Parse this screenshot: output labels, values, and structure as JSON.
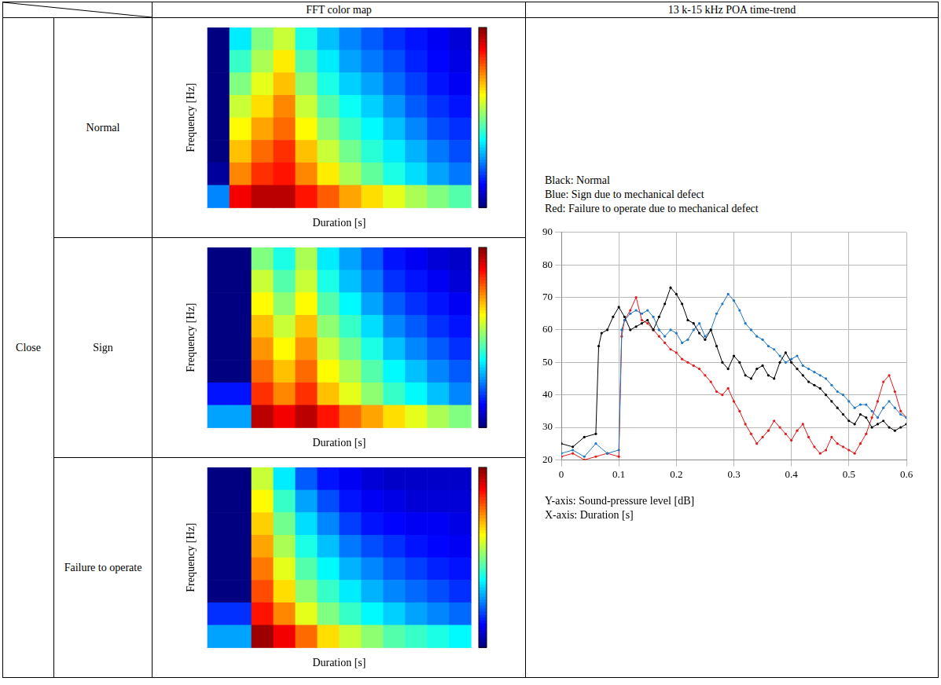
{
  "table": {
    "columns": [
      "FFT color map",
      "13 k-15 kHz POA time-trend"
    ],
    "group": "Close",
    "rows": [
      "Normal",
      "Sign",
      "Failure to operate"
    ]
  },
  "chart_data": [
    {
      "type": "heatmap",
      "x_label": "Duration [s]",
      "y_label": "Frequency [Hz]",
      "xlim": [
        0,
        0.6
      ],
      "ylim": [
        0,
        20000
      ],
      "tick_labels": false,
      "colorbar": {
        "range": [
          20,
          90
        ]
      },
      "cells": [
        [
          20,
          45,
          55,
          60,
          48,
          42,
          38,
          35,
          32,
          30,
          28,
          26
        ],
        [
          20,
          50,
          58,
          65,
          52,
          45,
          40,
          37,
          34,
          31,
          29,
          27
        ],
        [
          20,
          55,
          62,
          68,
          56,
          48,
          43,
          40,
          36,
          33,
          30,
          28
        ],
        [
          20,
          60,
          66,
          72,
          60,
          52,
          47,
          43,
          39,
          35,
          32,
          30
        ],
        [
          20,
          64,
          70,
          74,
          64,
          56,
          50,
          46,
          42,
          38,
          34,
          32
        ],
        [
          20,
          68,
          74,
          78,
          68,
          60,
          54,
          49,
          45,
          41,
          37,
          34
        ],
        [
          22,
          72,
          78,
          80,
          72,
          65,
          58,
          53,
          48,
          44,
          40,
          37
        ],
        [
          38,
          82,
          86,
          86,
          80,
          75,
          70,
          66,
          62,
          58,
          55,
          52
        ]
      ]
    },
    {
      "type": "heatmap",
      "x_label": "Duration [s]",
      "y_label": "Frequency [Hz]",
      "xlim": [
        0,
        0.6
      ],
      "ylim": [
        0,
        20000
      ],
      "tick_labels": false,
      "colorbar": {
        "range": [
          20,
          90
        ]
      },
      "cells": [
        [
          20,
          20,
          55,
          48,
          58,
          45,
          40,
          35,
          30,
          28,
          26,
          25
        ],
        [
          20,
          20,
          60,
          52,
          60,
          48,
          42,
          37,
          32,
          30,
          28,
          26
        ],
        [
          20,
          20,
          64,
          56,
          64,
          52,
          46,
          40,
          35,
          32,
          30,
          28
        ],
        [
          20,
          20,
          68,
          60,
          68,
          56,
          50,
          44,
          38,
          35,
          32,
          30
        ],
        [
          20,
          20,
          71,
          64,
          71,
          60,
          54,
          48,
          42,
          38,
          35,
          32
        ],
        [
          20,
          20,
          74,
          68,
          74,
          64,
          58,
          52,
          46,
          42,
          38,
          35
        ],
        [
          30,
          30,
          78,
          72,
          78,
          68,
          62,
          56,
          50,
          46,
          42,
          38
        ],
        [
          40,
          40,
          86,
          82,
          86,
          80,
          74,
          70,
          66,
          62,
          58,
          55
        ]
      ]
    },
    {
      "type": "heatmap",
      "x_label": "Duration [s]",
      "y_label": "Frequency [Hz]",
      "xlim": [
        0,
        0.6
      ],
      "ylim": [
        0,
        20000
      ],
      "tick_labels": false,
      "colorbar": {
        "range": [
          20,
          90
        ]
      },
      "cells": [
        [
          20,
          20,
          60,
          45,
          35,
          30,
          28,
          26,
          25,
          25,
          25,
          25
        ],
        [
          20,
          20,
          64,
          50,
          40,
          34,
          30,
          28,
          27,
          26,
          26,
          26
        ],
        [
          20,
          20,
          67,
          54,
          44,
          38,
          33,
          30,
          29,
          28,
          28,
          27
        ],
        [
          20,
          20,
          70,
          58,
          48,
          42,
          37,
          34,
          32,
          30,
          29,
          28
        ],
        [
          20,
          20,
          73,
          62,
          52,
          46,
          41,
          38,
          35,
          33,
          31,
          30
        ],
        [
          20,
          20,
          76,
          66,
          56,
          50,
          45,
          41,
          38,
          36,
          34,
          32
        ],
        [
          32,
          32,
          80,
          72,
          62,
          55,
          50,
          46,
          43,
          40,
          38,
          36
        ],
        [
          40,
          40,
          88,
          82,
          74,
          66,
          60,
          56,
          52,
          50,
          48,
          46
        ]
      ]
    },
    {
      "type": "line",
      "notes": [
        "Y-axis: Sound-pressure level [dB]",
        "X-axis: Duration [s]"
      ],
      "xlim": [
        0,
        0.6
      ],
      "xticks": [
        0,
        0.1,
        0.2,
        0.3,
        0.4,
        0.5,
        0.6
      ],
      "ylim": [
        20,
        90
      ],
      "yticks": [
        20,
        30,
        40,
        50,
        60,
        70,
        80,
        90
      ],
      "grid": true,
      "legend": "top",
      "series": [
        {
          "name": "Black: Normal",
          "color": "#000000",
          "marker": "circle",
          "x": [
            0,
            0.02,
            0.04,
            0.06,
            0.065,
            0.07,
            0.08,
            0.09,
            0.1,
            0.11,
            0.12,
            0.13,
            0.14,
            0.15,
            0.16,
            0.17,
            0.18,
            0.19,
            0.2,
            0.21,
            0.22,
            0.23,
            0.24,
            0.25,
            0.26,
            0.27,
            0.28,
            0.29,
            0.3,
            0.31,
            0.32,
            0.33,
            0.34,
            0.35,
            0.36,
            0.37,
            0.38,
            0.39,
            0.4,
            0.41,
            0.42,
            0.43,
            0.44,
            0.45,
            0.46,
            0.47,
            0.48,
            0.49,
            0.5,
            0.51,
            0.52,
            0.53,
            0.54,
            0.55,
            0.56,
            0.57,
            0.58,
            0.59,
            0.6
          ],
          "values": [
            25,
            24,
            27,
            28,
            55,
            59,
            60,
            64,
            67,
            64,
            60,
            61,
            62,
            63,
            60,
            64,
            68,
            73,
            71,
            68,
            63,
            62,
            59,
            57,
            60,
            55,
            50,
            48,
            52,
            50,
            46,
            45,
            48,
            49,
            46,
            45,
            50,
            53,
            50,
            48,
            46,
            44,
            43,
            42,
            40,
            38,
            36,
            34,
            32,
            31,
            34,
            33,
            30,
            31,
            32,
            30,
            29,
            30,
            31
          ]
        },
        {
          "name": "Blue: Sign due to mechanical defect",
          "color": "#1f77c4",
          "marker": "circle",
          "x": [
            0,
            0.02,
            0.04,
            0.06,
            0.08,
            0.1,
            0.105,
            0.11,
            0.12,
            0.13,
            0.14,
            0.15,
            0.16,
            0.17,
            0.18,
            0.19,
            0.2,
            0.21,
            0.22,
            0.23,
            0.24,
            0.25,
            0.26,
            0.27,
            0.28,
            0.29,
            0.3,
            0.31,
            0.32,
            0.33,
            0.34,
            0.35,
            0.36,
            0.37,
            0.38,
            0.39,
            0.4,
            0.41,
            0.42,
            0.43,
            0.44,
            0.45,
            0.46,
            0.47,
            0.48,
            0.49,
            0.5,
            0.51,
            0.52,
            0.53,
            0.54,
            0.55,
            0.56,
            0.57,
            0.58,
            0.59,
            0.6
          ],
          "values": [
            22,
            23,
            21,
            25,
            22,
            23,
            60,
            63,
            65,
            66,
            65,
            66,
            64,
            60,
            58,
            60,
            59,
            56,
            57,
            60,
            62,
            58,
            60,
            65,
            68,
            71,
            69,
            66,
            62,
            60,
            58,
            57,
            55,
            54,
            52,
            50,
            51,
            52,
            49,
            48,
            47,
            46,
            45,
            43,
            41,
            40,
            38,
            36,
            37,
            37,
            35,
            33,
            36,
            38,
            36,
            34,
            33
          ]
        },
        {
          "name": "Red: Failure to operate due to mechanical defect",
          "color": "#e31a1c",
          "marker": "circle",
          "x": [
            0,
            0.02,
            0.04,
            0.06,
            0.08,
            0.1,
            0.105,
            0.11,
            0.12,
            0.13,
            0.14,
            0.15,
            0.16,
            0.17,
            0.18,
            0.19,
            0.2,
            0.21,
            0.22,
            0.23,
            0.24,
            0.25,
            0.26,
            0.27,
            0.28,
            0.29,
            0.3,
            0.31,
            0.32,
            0.33,
            0.34,
            0.35,
            0.36,
            0.37,
            0.38,
            0.39,
            0.4,
            0.41,
            0.42,
            0.43,
            0.44,
            0.45,
            0.46,
            0.47,
            0.48,
            0.49,
            0.5,
            0.51,
            0.52,
            0.53,
            0.54,
            0.55,
            0.56,
            0.57,
            0.58,
            0.59,
            0.6
          ],
          "values": [
            21,
            22,
            20,
            21,
            22,
            21,
            58,
            63,
            66,
            70,
            63,
            62,
            60,
            58,
            56,
            54,
            53,
            51,
            50,
            49,
            48,
            46,
            44,
            41,
            40,
            42,
            38,
            35,
            31,
            28,
            25,
            27,
            29,
            32,
            30,
            28,
            26,
            29,
            31,
            27,
            24,
            22,
            23,
            27,
            25,
            24,
            23,
            22,
            25,
            28,
            33,
            38,
            44,
            46,
            41,
            35,
            33
          ]
        }
      ]
    }
  ]
}
